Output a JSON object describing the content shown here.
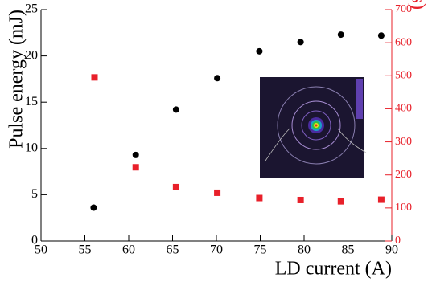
{
  "chart_data": {
    "type": "scatter",
    "x_label": "LD current (A)",
    "y_label": "Pulse energy (mJ)",
    "y2_label": "Pulse width (ns)",
    "xlim": [
      50,
      90
    ],
    "xticks": [
      50,
      55,
      60,
      65,
      70,
      75,
      80,
      85,
      90
    ],
    "ylim": [
      0,
      25
    ],
    "yticks": [
      0,
      5,
      10,
      15,
      20,
      25
    ],
    "y2lim": [
      0,
      700
    ],
    "y2ticks": [
      0,
      100,
      200,
      300,
      400,
      500,
      600,
      700
    ],
    "series": [
      {
        "color": "#000000",
        "marker": "circle",
        "x": [
          56,
          60.8,
          65.4,
          70.1,
          74.9,
          79.6,
          84.2,
          88.8
        ],
        "values": [
          3.6,
          9.3,
          14.2,
          17.6,
          20.5,
          21.5,
          22.3,
          22.2
        ]
      },
      {
        "color": "#e8202a",
        "marker": "square",
        "axis": "y2",
        "x": [
          56.1,
          60.8,
          65.4,
          70.1,
          74.9,
          79.6,
          84.2,
          88.8
        ],
        "values": [
          495,
          223,
          163,
          146,
          130,
          124,
          120,
          125
        ]
      }
    ]
  }
}
